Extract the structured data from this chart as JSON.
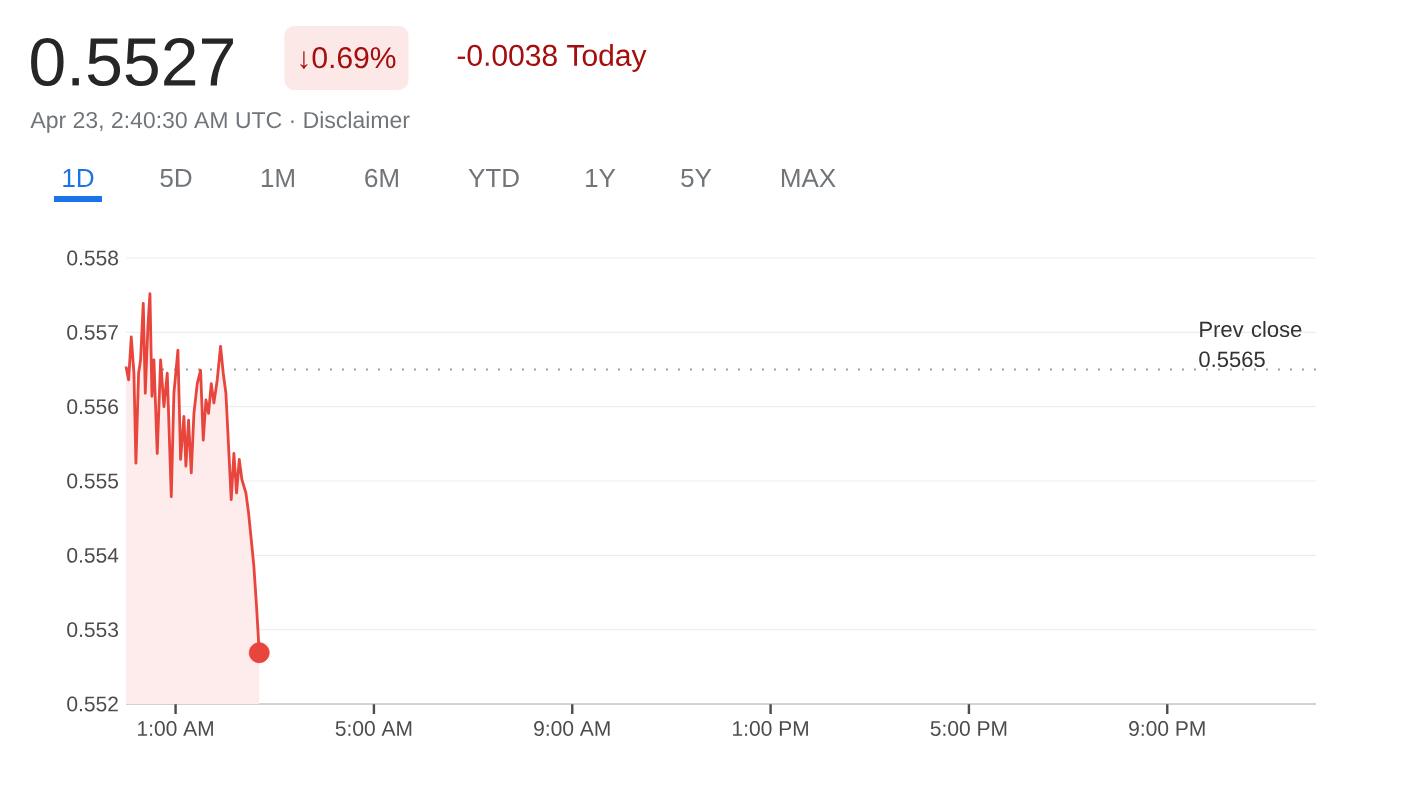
{
  "chart_data": {
    "type": "area",
    "title": "0.5527",
    "subtitle": "Apr 23, 2:40:30 AM UTC · Disclaimer",
    "annotations": [
      "↓0.69%",
      "-0.0038 Today",
      "1D",
      "5D",
      "1M",
      "6M",
      "YTD",
      "1Y",
      "5Y",
      "MAX"
    ],
    "series": [
      {
        "color": "#e8453c",
        "x": [
          0.0,
          0.053,
          0.106,
          0.16,
          0.2,
          0.254,
          0.294,
          0.348,
          0.389,
          0.442,
          0.483,
          0.523,
          0.563,
          0.63,
          0.698,
          0.765,
          0.832,
          0.913,
          0.966,
          1.047,
          1.101,
          1.168,
          1.208,
          1.262,
          1.316,
          1.37,
          1.437,
          1.504,
          1.558,
          1.612,
          1.665,
          1.719,
          1.773,
          1.84,
          1.907,
          1.961,
          2.015,
          2.069,
          2.122,
          2.176,
          2.23,
          2.284,
          2.337,
          2.418,
          2.472,
          2.526,
          2.579,
          2.633,
          2.687
        ],
        "values": [
          0.55654,
          0.55636,
          0.55694,
          0.55645,
          0.55524,
          0.55645,
          0.55663,
          0.55739,
          0.55618,
          0.55708,
          0.55752,
          0.55614,
          0.55663,
          0.55537,
          0.55663,
          0.556,
          0.55645,
          0.55479,
          0.55618,
          0.55676,
          0.55529,
          0.55587,
          0.5552,
          0.55582,
          0.55511,
          0.55591,
          0.55631,
          0.55649,
          0.55555,
          0.55609,
          0.55591,
          0.55631,
          0.55605,
          0.55636,
          0.55681,
          0.55645,
          0.55618,
          0.55546,
          0.55475,
          0.55537,
          0.55484,
          0.55529,
          0.55502,
          0.55484,
          0.55457,
          0.55421,
          0.55385,
          0.55331,
          0.55269
        ]
      },
      {
        "type": "scatter",
        "color": "#e8453c",
        "x": [
          2.687
        ],
        "values": [
          0.55269
        ]
      }
    ],
    "xlim": [
      0,
      24
    ],
    "xticks": [
      {
        "value": 1,
        "label": "1:00 AM"
      },
      {
        "value": 5,
        "label": "5:00 AM"
      },
      {
        "value": 9,
        "label": "9:00 AM"
      },
      {
        "value": 13,
        "label": "1:00 PM"
      },
      {
        "value": 17,
        "label": "5:00 PM"
      },
      {
        "value": 21,
        "label": "9:00 PM"
      }
    ],
    "ylim": [
      0.552,
      0.558
    ],
    "yticks": [
      0.552,
      0.553,
      0.554,
      0.555,
      0.556,
      0.557,
      0.558
    ],
    "grid": "y",
    "ref_lines": [
      {
        "axis": "y",
        "value": 0.5565,
        "label": "Prev close 0.5565",
        "color": "#9aa0a6",
        "line_style": "dotted"
      }
    ]
  }
}
